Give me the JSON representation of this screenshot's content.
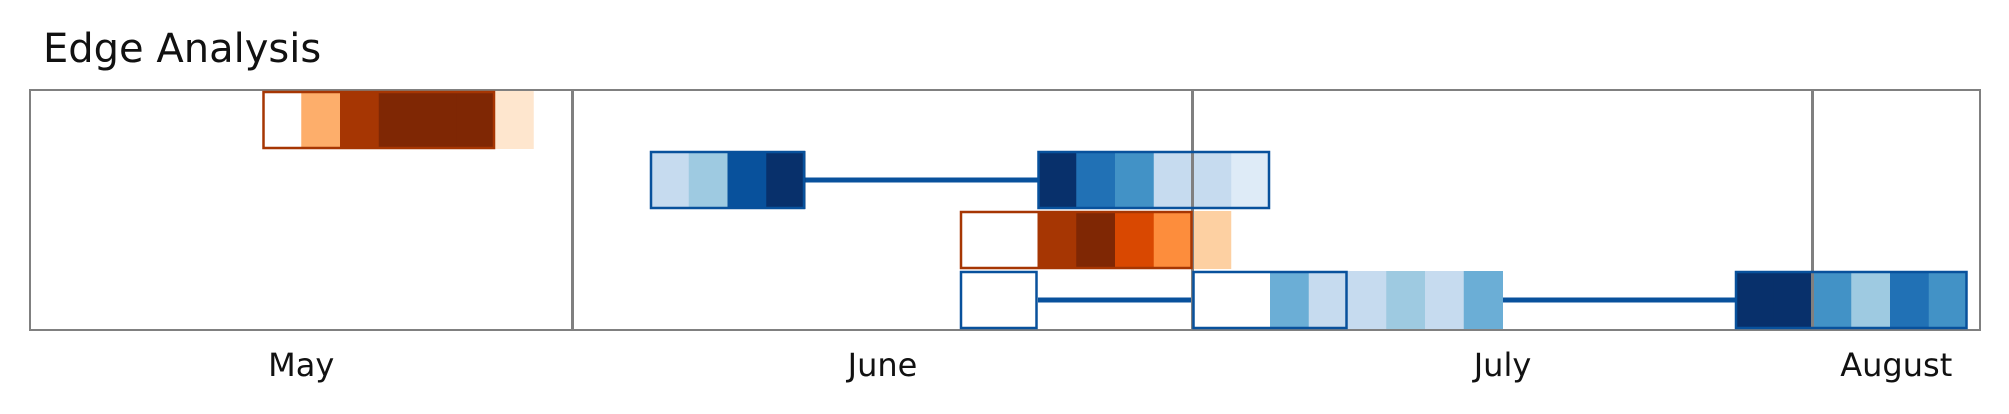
{
  "chart_data": {
    "type": "heatmap",
    "title": "Edge Analysis",
    "x_axis": {
      "unit": "week",
      "range": [
        "Week 1",
        "Week 26"
      ],
      "month_labels": [
        "May",
        "June",
        "July",
        "August"
      ],
      "month_boundaries_after_week": [
        7,
        15,
        23
      ],
      "grid": "vertical lines at month boundaries"
    },
    "palettes": {
      "blue": [
        "#ffffff",
        "#deebf7",
        "#c6dbef",
        "#9ecae1",
        "#6baed6",
        "#4292c6",
        "#2171b5",
        "#08519c",
        "#08306b"
      ],
      "orange": [
        "#ffffff",
        "#fee6ce",
        "#fdd0a2",
        "#fdae6b",
        "#fd8d3c",
        "#f16913",
        "#d94801",
        "#a63603",
        "#7f2704"
      ],
      "blue_outline": "#08519c",
      "orange_outline": "#a63603",
      "connector": "#08519c",
      "frame": "#808080"
    },
    "rows": [
      {
        "row": 1,
        "segments": [
          {
            "palette": "orange",
            "start_week": 4,
            "end_week": 6,
            "values": [
              0,
              3,
              7,
              8,
              8,
              8,
              1,
              0
            ]
          }
        ],
        "connectors": []
      },
      {
        "row": 2,
        "segments": [
          {
            "palette": "blue",
            "start_week": 9,
            "end_week": 10,
            "values": [
              2,
              3,
              7,
              8
            ]
          },
          {
            "palette": "blue",
            "start_week": 14,
            "end_week": 16,
            "values": [
              8,
              6,
              5,
              2,
              2,
              1,
              0,
              0
            ]
          }
        ],
        "connectors": [
          {
            "from_week": 10,
            "to_week": 14
          }
        ]
      },
      {
        "row": 3,
        "segments": [
          {
            "palette": "orange",
            "start_week": 13,
            "end_week": 15,
            "values": [
              0,
              0,
              7,
              8,
              6,
              4,
              2,
              0
            ]
          }
        ],
        "connectors": []
      },
      {
        "row": 4,
        "segments": [
          {
            "palette": "blue",
            "start_week": 13,
            "end_week": 13,
            "values": [
              0,
              0
            ]
          },
          {
            "palette": "blue",
            "start_week": 16,
            "end_week": 17,
            "values": [
              0,
              0,
              4,
              2,
              2,
              3,
              2,
              4
            ]
          },
          {
            "palette": "blue",
            "start_week": 23,
            "end_week": 25,
            "values": [
              8,
              8,
              5,
              3,
              6,
              5,
              0,
              0
            ]
          }
        ],
        "connectors": [
          {
            "from_week": 13,
            "to_week": 16
          },
          {
            "from_week": 18,
            "to_week": 23
          }
        ]
      }
    ]
  }
}
